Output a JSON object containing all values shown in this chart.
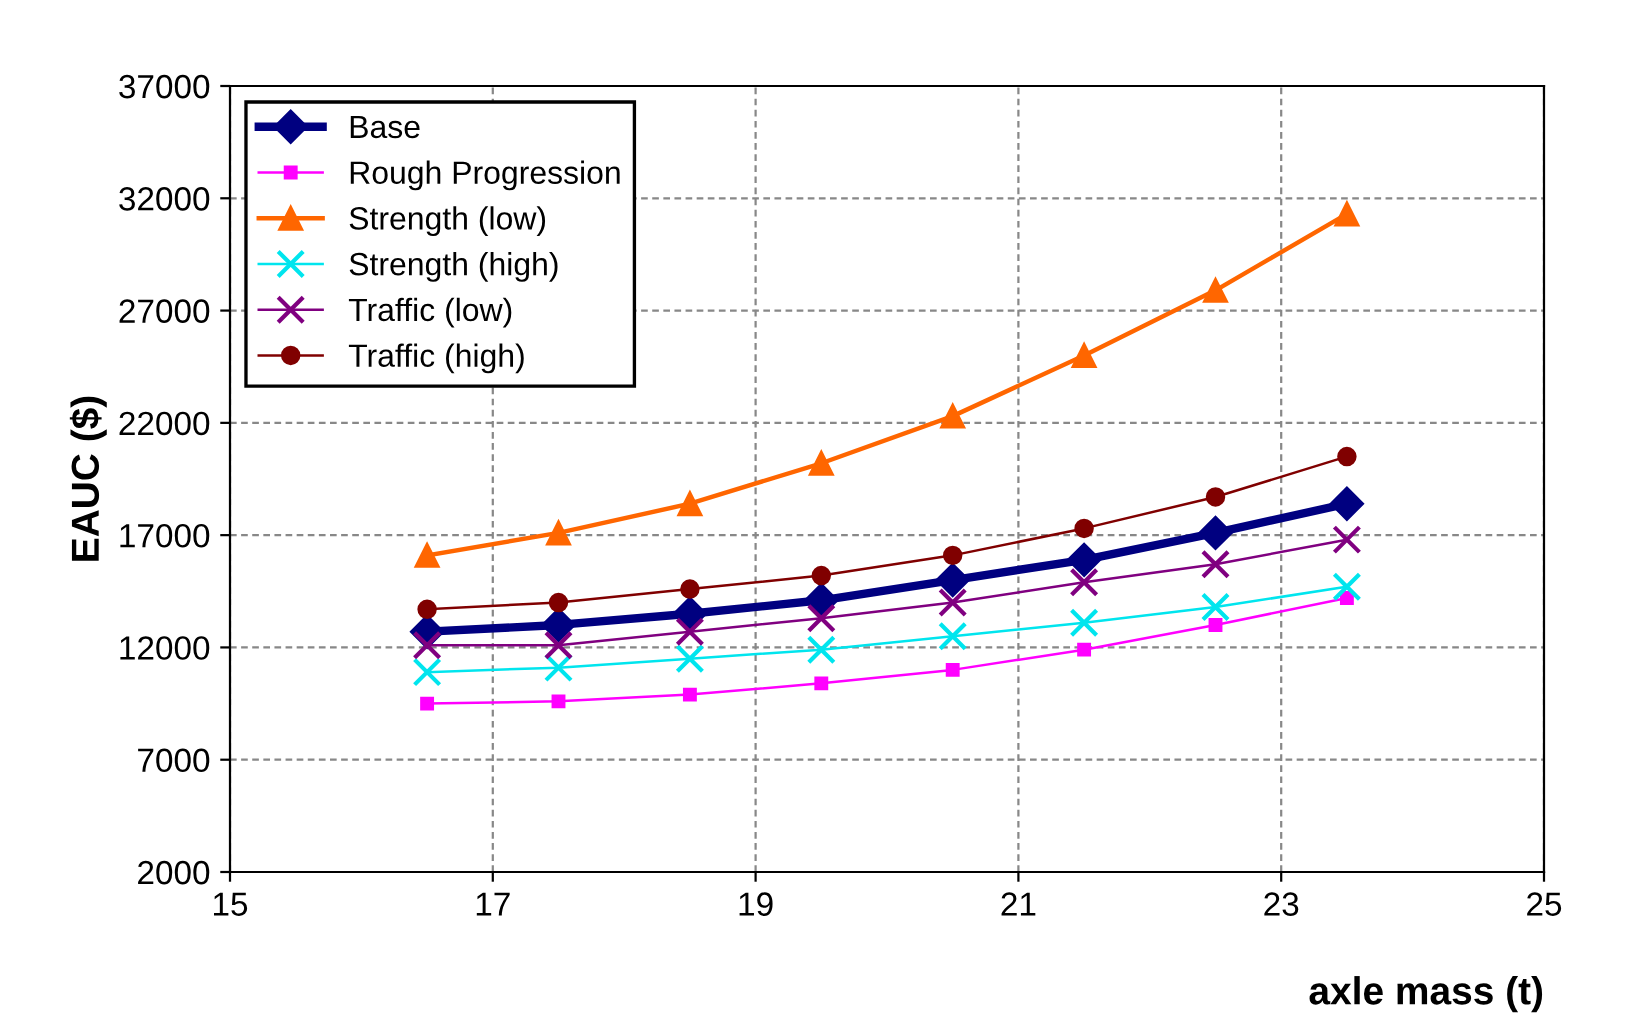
{
  "chart_data": {
    "type": "line",
    "xlabel": "axle mass (t)",
    "ylabel": "EAUC ($)",
    "x": [
      16.5,
      17.5,
      18.5,
      19.5,
      20.5,
      21.5,
      22.5,
      23.5
    ],
    "xlim": [
      15,
      25
    ],
    "xticks": [
      15,
      17,
      19,
      21,
      23,
      25
    ],
    "ylim": [
      2000,
      37000
    ],
    "yticks": [
      2000,
      7000,
      12000,
      17000,
      22000,
      27000,
      32000,
      37000
    ],
    "grid": true,
    "legend": "top left",
    "series": [
      {
        "name": "Base",
        "color": "#000080",
        "marker": "diamond",
        "values": [
          12700,
          13000,
          13500,
          14100,
          15000,
          15900,
          17100,
          18400
        ]
      },
      {
        "name": "Rough Progression",
        "color": "#ff00ff",
        "marker": "square",
        "values": [
          9500,
          9600,
          9900,
          10400,
          11000,
          11900,
          13000,
          14200
        ]
      },
      {
        "name": "Strength (low)",
        "color": "#ff6600",
        "marker": "triangle",
        "values": [
          16100,
          17100,
          18400,
          20200,
          22300,
          25000,
          27900,
          31300
        ]
      },
      {
        "name": "Strength (high)",
        "color": "#00e5ee",
        "marker": "cross",
        "values": [
          10900,
          11100,
          11500,
          11900,
          12500,
          13100,
          13800,
          14700
        ]
      },
      {
        "name": "Traffic (low)",
        "color": "#800080",
        "marker": "cross",
        "values": [
          12100,
          12100,
          12700,
          13300,
          14000,
          14900,
          15700,
          16800
        ]
      },
      {
        "name": "Traffic (high)",
        "color": "#800000",
        "marker": "circle",
        "values": [
          13700,
          14000,
          14600,
          15200,
          16100,
          17300,
          18700,
          20500
        ]
      }
    ]
  }
}
